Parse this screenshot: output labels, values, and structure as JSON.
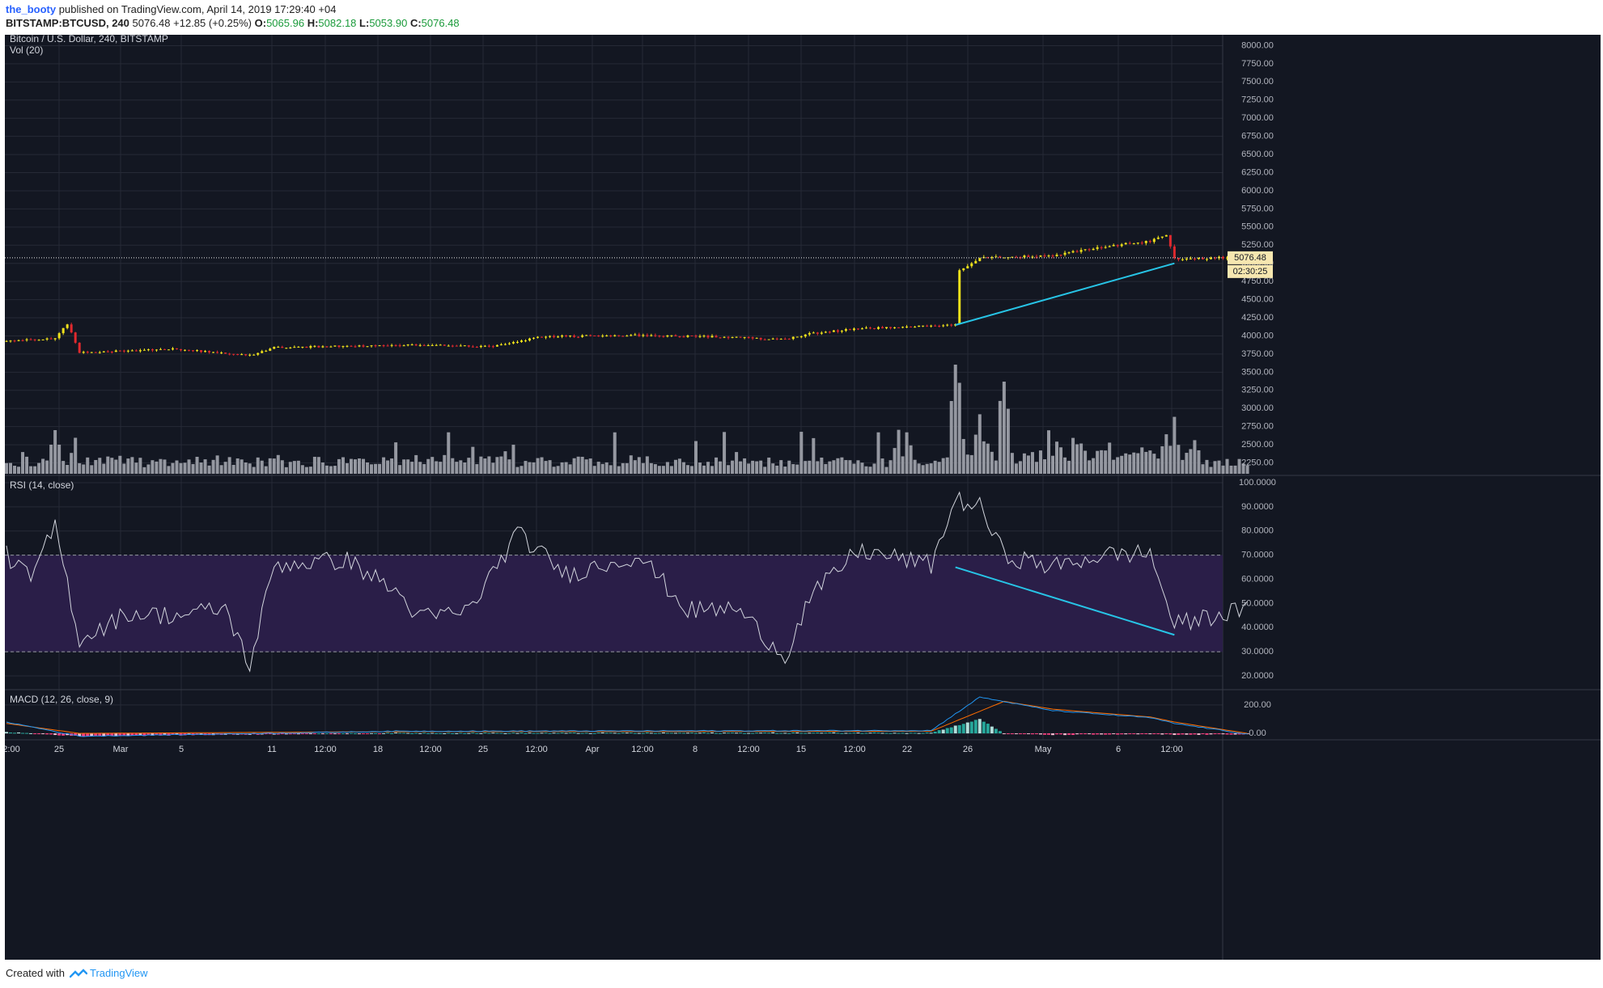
{
  "header": {
    "author": "the_booty",
    "published": "published on TradingView.com, April 14, 2019 17:29:40 +04",
    "symbol": "BITSTAMP:BTCUSD, 240",
    "last": "5076.48",
    "change": "+12.85 (+0.25%)",
    "o_label": "O:",
    "o_value": "5065.96",
    "h_label": "H:",
    "h_value": "5082.18",
    "l_label": "L:",
    "l_value": "5053.90",
    "c_label": "C:",
    "c_value": "5076.48"
  },
  "footer": {
    "created_with": "Created with",
    "brand": "TradingView"
  },
  "colors": {
    "background": "#131722",
    "grid": "#262a36",
    "text": "#b2b5be",
    "candle_up": "#f0e21b",
    "candle_down": "#e0292e",
    "volume": "#9598a1",
    "trendline": "#27c4e6",
    "rsi_band": "#2a1e48",
    "rsi_line": "#d1d4dc",
    "macd_line": "#2196f3",
    "signal_line": "#ff6d00",
    "hist_pos": "#26a69a",
    "hist_pos_light": "#b2dfdb",
    "hist_neg": "#ff4081",
    "hist_neg_light": "#f8bbd0"
  },
  "chart_data": [
    {
      "type": "candlestick",
      "title": "Bitcoin / U.S. Dollar, 240, BITSTAMP",
      "overlay_label": "Vol (20)",
      "ylim": [
        2100,
        8150
      ],
      "y_ticks": [
        "8000.00",
        "7750.00",
        "7500.00",
        "7250.00",
        "7000.00",
        "6750.00",
        "6500.00",
        "6250.00",
        "6000.00",
        "5750.00",
        "5500.00",
        "5250.00",
        "5000.00",
        "4750.00",
        "4500.00",
        "4250.00",
        "4000.00",
        "3750.00",
        "3500.00",
        "3250.00",
        "3000.00",
        "2750.00",
        "2500.00",
        "2250.00"
      ],
      "last_price_label": "5076.48",
      "countdown_label": "02:30:25",
      "x_ticks": [
        "2:00",
        "25",
        "Mar",
        "5",
        "11",
        "12:00",
        "18",
        "12:00",
        "25",
        "12:00",
        "Apr",
        "12:00",
        "8",
        "12:00",
        "15",
        "12:00",
        "22",
        "26",
        "May",
        "6",
        "12:00"
      ],
      "price_keypoints": [
        {
          "date": "Feb 22",
          "price": 3930
        },
        {
          "date": "Feb 24",
          "price": 3960
        },
        {
          "date": "Feb 24 12:00",
          "price": 4170
        },
        {
          "date": "Feb 25",
          "price": 3770
        },
        {
          "date": "Mar 1",
          "price": 3820
        },
        {
          "date": "Mar 4",
          "price": 3730
        },
        {
          "date": "Mar 5",
          "price": 3840
        },
        {
          "date": "Mar 11",
          "price": 3880
        },
        {
          "date": "Mar 14",
          "price": 3850
        },
        {
          "date": "Mar 16",
          "price": 3990
        },
        {
          "date": "Mar 20",
          "price": 4010
        },
        {
          "date": "Mar 23",
          "price": 3990
        },
        {
          "date": "Mar 26",
          "price": 3950
        },
        {
          "date": "Mar 27",
          "price": 4030
        },
        {
          "date": "Mar 29",
          "price": 4100
        },
        {
          "date": "Apr 1",
          "price": 4140
        },
        {
          "date": "Apr 2",
          "price": 4150
        },
        {
          "date": "Apr 2 04:00",
          "price": 4900
        },
        {
          "date": "Apr 3",
          "price": 5080
        },
        {
          "date": "Apr 6",
          "price": 5100
        },
        {
          "date": "Apr 8",
          "price": 5230
        },
        {
          "date": "Apr 10",
          "price": 5300
        },
        {
          "date": "Apr 10 16:00",
          "price": 5400
        },
        {
          "date": "Apr 11",
          "price": 5060
        },
        {
          "date": "Apr 13",
          "price": 5080
        },
        {
          "date": "Apr 14",
          "price": 5076.48
        }
      ],
      "volume_label": "Vol (20)",
      "volume_peaks": [
        {
          "date": "Feb 24",
          "value_rel": 0.4
        },
        {
          "date": "Apr 2",
          "value_rel": 1.0
        },
        {
          "date": "Apr 3",
          "value_rel": 0.44
        },
        {
          "date": "Apr 4",
          "value_rel": 0.79
        },
        {
          "date": "Apr 11",
          "value_rel": 0.37
        }
      ],
      "annotations": [
        {
          "type": "trendline",
          "from": {
            "date": "Apr 2",
            "price": 4150
          },
          "to": {
            "date": "Apr 11",
            "price": 5000
          }
        }
      ]
    },
    {
      "type": "line",
      "title": "RSI (14, close)",
      "ylim": [
        15,
        102
      ],
      "y_ticks": [
        "100.0000",
        "90.0000",
        "80.0000",
        "70.0000",
        "60.0000",
        "50.0000",
        "40.0000",
        "30.0000",
        "20.0000"
      ],
      "band": [
        30,
        70
      ],
      "keypoints": [
        {
          "date": "Feb 22",
          "rsi": 70
        },
        {
          "date": "Feb 23",
          "rsi": 60
        },
        {
          "date": "Feb 24",
          "rsi": 82
        },
        {
          "date": "Feb 25",
          "rsi": 35
        },
        {
          "date": "Feb 27",
          "rsi": 46
        },
        {
          "date": "Mar 1",
          "rsi": 45
        },
        {
          "date": "Mar 3",
          "rsi": 48
        },
        {
          "date": "Mar 4",
          "rsi": 24
        },
        {
          "date": "Mar 5",
          "rsi": 66
        },
        {
          "date": "Mar 8",
          "rsi": 68
        },
        {
          "date": "Mar 10",
          "rsi": 55
        },
        {
          "date": "Mar 11",
          "rsi": 44
        },
        {
          "date": "Mar 13",
          "rsi": 47
        },
        {
          "date": "Mar 15",
          "rsi": 79
        },
        {
          "date": "Mar 17",
          "rsi": 62
        },
        {
          "date": "Mar 20",
          "rsi": 70
        },
        {
          "date": "Mar 22",
          "rsi": 47
        },
        {
          "date": "Mar 24",
          "rsi": 48
        },
        {
          "date": "Mar 26",
          "rsi": 28
        },
        {
          "date": "Mar 27",
          "rsi": 52
        },
        {
          "date": "Mar 29",
          "rsi": 72
        },
        {
          "date": "Apr 1",
          "rsi": 66
        },
        {
          "date": "Apr 2",
          "rsi": 93
        },
        {
          "date": "Apr 3",
          "rsi": 90
        },
        {
          "date": "Apr 4",
          "rsi": 70
        },
        {
          "date": "Apr 6",
          "rsi": 65
        },
        {
          "date": "Apr 8",
          "rsi": 70
        },
        {
          "date": "Apr 10",
          "rsi": 71
        },
        {
          "date": "Apr 11",
          "rsi": 41
        },
        {
          "date": "Apr 13",
          "rsi": 46
        },
        {
          "date": "Apr 14",
          "rsi": 47
        }
      ],
      "annotations": [
        {
          "type": "trendline",
          "from": {
            "date": "Apr 2",
            "rsi": 65
          },
          "to": {
            "date": "Apr 11",
            "rsi": 37
          }
        }
      ]
    },
    {
      "type": "bar",
      "title": "MACD (12, 26, close, 9)",
      "ylim": [
        -45,
        290
      ],
      "y_ticks": [
        "200.00",
        "0.00"
      ],
      "series": [
        {
          "name": "MACD",
          "keypoints": [
            {
              "date": "Feb 22",
              "value": 80
            },
            {
              "date": "Feb 25",
              "value": -20
            },
            {
              "date": "Mar 10",
              "value": 15
            },
            {
              "date": "Apr 1",
              "value": 20
            },
            {
              "date": "Apr 3",
              "value": 255
            },
            {
              "date": "Apr 6",
              "value": 160
            },
            {
              "date": "Apr 10",
              "value": 110
            },
            {
              "date": "Apr 11",
              "value": 70
            },
            {
              "date": "Apr 14",
              "value": -5
            }
          ]
        },
        {
          "name": "Signal",
          "keypoints": [
            {
              "date": "Feb 22",
              "value": 70
            },
            {
              "date": "Feb 25",
              "value": 0
            },
            {
              "date": "Mar 10",
              "value": 12
            },
            {
              "date": "Apr 1",
              "value": 15
            },
            {
              "date": "Apr 4",
              "value": 225
            },
            {
              "date": "Apr 6",
              "value": 170
            },
            {
              "date": "Apr 10",
              "value": 115
            },
            {
              "date": "Apr 11",
              "value": 80
            },
            {
              "date": "Apr 14",
              "value": 0
            }
          ]
        }
      ]
    }
  ]
}
